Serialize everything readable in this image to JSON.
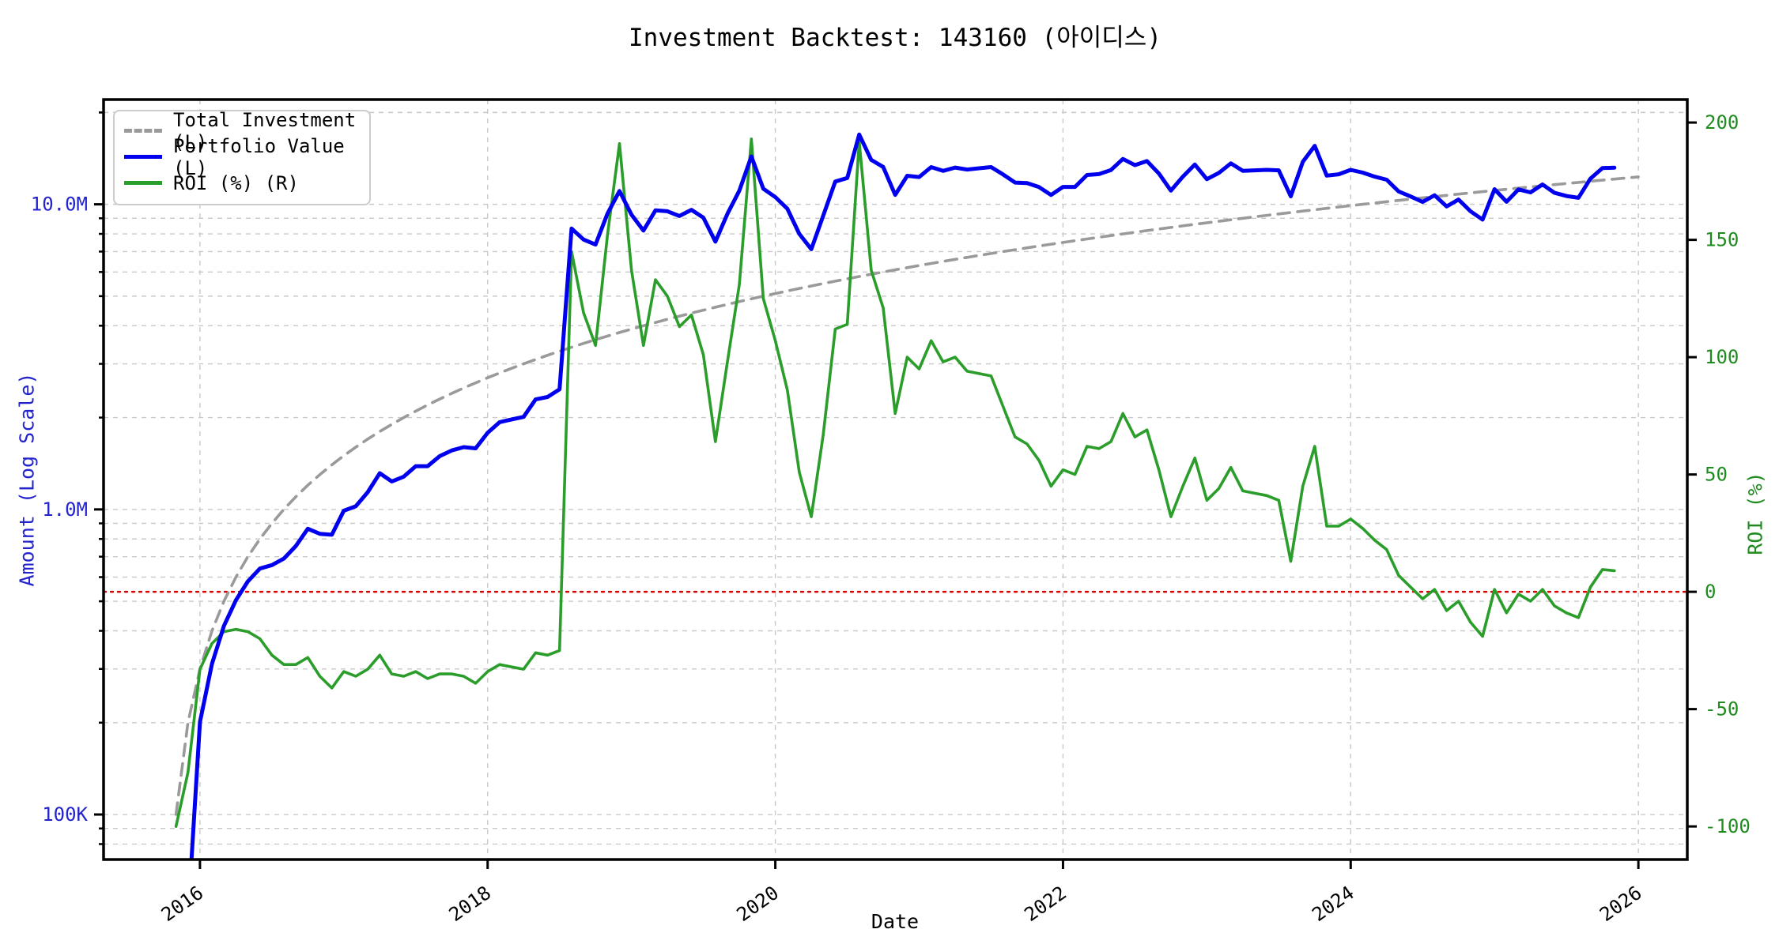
{
  "title": "Investment Backtest: 143160 (아이디스)",
  "axes": {
    "x_label": "Date",
    "y_left_label": "Amount (Log Scale)",
    "y_right_label": "ROI (%)",
    "x_ticks": [
      "2016",
      "2018",
      "2020",
      "2022",
      "2024",
      "2026"
    ],
    "x_tick_years": [
      2016,
      2018,
      2020,
      2022,
      2024,
      2026
    ],
    "y_left_ticks": [
      {
        "label": "10.0M",
        "value_m": 10
      },
      {
        "label": "1.0M",
        "value_m": 1
      },
      {
        "label": "100K",
        "value_m": 0.1
      }
    ],
    "y_right_ticks": [
      -100,
      -50,
      0,
      50,
      100,
      150,
      200
    ]
  },
  "legend": {
    "items": [
      {
        "label": "Total Investment (L)",
        "color": "#9a9a9a",
        "style": "dashed"
      },
      {
        "label": "Portfolio Value (L)",
        "color": "#0000ee",
        "style": "solid"
      },
      {
        "label": "ROI (%) (R)",
        "color": "#2a9d2a",
        "style": "solid"
      }
    ]
  },
  "colors": {
    "investment_line": "#9a9a9a",
    "portfolio_line": "#0000ee",
    "roi_line": "#2a9d2a",
    "zero_line": "#dd0000",
    "grid": "#c9c9c9",
    "spine": "#000000",
    "left_tick_text": "#2323cc",
    "right_tick_text": "#1f8b1f"
  },
  "chart_data": {
    "type": "line",
    "title": "Investment Backtest: 143160 (아이디스)",
    "xlabel": "Date",
    "ylabel_left": "Amount (Log Scale)",
    "ylabel_right": "ROI (%)",
    "x_start_month": "2015-11",
    "x_cadence": "monthly",
    "n_points": 121,
    "monthly_contribution_m": 0.1,
    "investment_extra_months": 2,
    "xlim_years": [
      2015.33,
      2026.34
    ],
    "ylim_left_m": [
      0.0712,
      22.05
    ],
    "ylim_right_pct": [
      -114.1,
      209.8
    ],
    "zero_roi_line": 0,
    "grid": "log-minor horizontal dashed, vertical dashed at even years",
    "legend_position": "upper left",
    "series": [
      {
        "name": "Total Investment (L)",
        "axis": "left",
        "rule": "cumulative 0.1M per month starting 2015-11"
      },
      {
        "name": "Portfolio Value (L)",
        "axis": "left",
        "unit": "millions",
        "values": [
          0,
          0.046,
          0.201,
          0.312,
          0.415,
          0.504,
          0.581,
          0.64,
          0.657,
          0.69,
          0.759,
          0.864,
          0.832,
          0.826,
          0.99,
          1.024,
          1.139,
          1.314,
          1.235,
          1.28,
          1.386,
          1.386,
          1.495,
          1.56,
          1.6,
          1.586,
          1.782,
          1.932,
          1.972,
          2.01,
          2.294,
          2.336,
          2.475,
          8.33,
          7.665,
          7.38,
          9.324,
          11.058,
          9.243,
          8.2,
          9.553,
          9.492,
          9.159,
          9.592,
          9.045,
          7.544,
          9.306,
          11.088,
          14.357,
          11.25,
          10.557,
          9.672,
          8.003,
          7.128,
          9.185,
          11.872,
          12.198,
          16.936,
          13.983,
          13.26,
          10.736,
          12.4,
          12.285,
          13.248,
          12.87,
          13.2,
          12.998,
          13.124,
          13.248,
          12.53,
          11.786,
          11.736,
          11.388,
          10.73,
          11.4,
          11.4,
          12.474,
          12.558,
          12.956,
          14.08,
          13.446,
          13.858,
          12.616,
          11.088,
          12.325,
          13.502,
          12.093,
          12.672,
          13.617,
          12.87,
          12.922,
          12.972,
          12.927,
          10.622,
          13.775,
          15.552,
          12.416,
          12.544,
          12.969,
          12.7,
          12.322,
          12.036,
          11.021,
          10.608,
          10.185,
          10.706,
          9.844,
          10.368,
          9.483,
          8.91,
          11.211,
          10.192,
          11.187,
          10.944,
          11.615,
          10.904,
          10.647,
          10.502,
          12.138,
          13.14,
          13.189
        ]
      },
      {
        "name": "ROI (%) (R)",
        "axis": "right",
        "unit": "percent",
        "values": [
          -100,
          -77,
          -33,
          -22,
          -17,
          -16,
          -17,
          -20,
          -27,
          -31,
          -31,
          -28,
          -36,
          -41,
          -34,
          -36,
          -33,
          -27,
          -35,
          -36,
          -34,
          -37,
          -35,
          -35,
          -36,
          -39,
          -34,
          -31,
          -32,
          -33,
          -26,
          -27,
          -25,
          145,
          119,
          105,
          152,
          191,
          137,
          105,
          133,
          126,
          113,
          118,
          101,
          64,
          98,
          131,
          193,
          125,
          107,
          86,
          51,
          32,
          67,
          112,
          114,
          192,
          137,
          121,
          76,
          100,
          95,
          107,
          98,
          100,
          94,
          93,
          92,
          79,
          66,
          63,
          56,
          45,
          52,
          50,
          62,
          61,
          64,
          76,
          66,
          69,
          52,
          32,
          45,
          57,
          39,
          44,
          53,
          43,
          42,
          41,
          39,
          13,
          45,
          62,
          28,
          28,
          31,
          27,
          22,
          18,
          7,
          2,
          -3,
          1,
          -8,
          -4,
          -13,
          -19,
          1,
          -9,
          -1,
          -4,
          1,
          -6,
          -9,
          -11,
          2,
          9.5,
          9
        ]
      }
    ]
  }
}
